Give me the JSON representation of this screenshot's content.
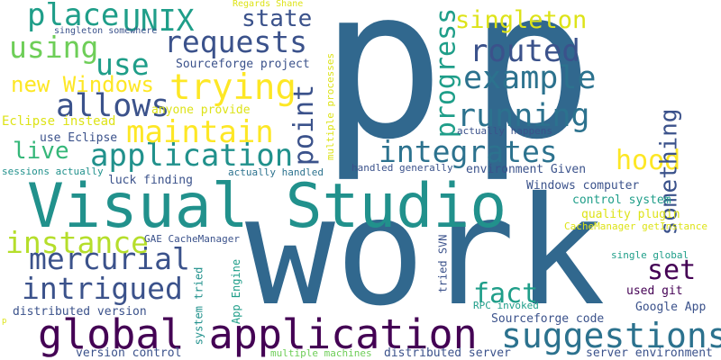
{
  "palette": {
    "purple": "#440154",
    "indigo": "#3b528b",
    "slate": "#31688e",
    "steel": "#2c728e",
    "teal": "#21918c",
    "sea": "#1f9e89",
    "green": "#35b779",
    "lime": "#6ece58",
    "chartreuse": "#b5de2b",
    "yellow": "#fde725",
    "gold": "#dde318"
  },
  "words": [
    {
      "text": "p",
      "color": "slate"
    },
    {
      "text": "p",
      "color": "slate"
    },
    {
      "text": "work",
      "color": "slate"
    },
    {
      "text": "Visual Studio",
      "color": "teal"
    },
    {
      "text": "global application",
      "color": "purple"
    },
    {
      "text": "application",
      "color": "teal"
    },
    {
      "text": "integrates",
      "color": "steel"
    },
    {
      "text": "requests",
      "color": "indigo"
    },
    {
      "text": "trying",
      "color": "yellow"
    },
    {
      "text": "example",
      "color": "steel"
    },
    {
      "text": "running",
      "color": "steel"
    },
    {
      "text": "routed",
      "color": "indigo"
    },
    {
      "text": "suggestions",
      "color": "steel"
    },
    {
      "text": "mercurial",
      "color": "indigo"
    },
    {
      "text": "intrigued",
      "color": "indigo"
    },
    {
      "text": "instance",
      "color": "chartreuse"
    },
    {
      "text": "maintain",
      "color": "yellow"
    },
    {
      "text": "allows",
      "color": "indigo"
    },
    {
      "text": "using",
      "color": "lime"
    },
    {
      "text": "place",
      "color": "sea"
    },
    {
      "text": "UNIX",
      "color": "sea"
    },
    {
      "text": "use",
      "color": "sea"
    },
    {
      "text": "state",
      "color": "indigo"
    },
    {
      "text": "singleton",
      "color": "gold"
    },
    {
      "text": "hood",
      "color": "yellow"
    },
    {
      "text": "set",
      "color": "purple"
    },
    {
      "text": "fact",
      "color": "sea"
    },
    {
      "text": "live",
      "color": "green"
    },
    {
      "text": "new Windows",
      "color": "yellow"
    },
    {
      "text": "progress",
      "color": "sea"
    },
    {
      "text": "point",
      "color": "indigo"
    },
    {
      "text": "something",
      "color": "indigo"
    },
    {
      "text": "Sourceforge project",
      "color": "indigo"
    },
    {
      "text": "anyone provide",
      "color": "gold"
    },
    {
      "text": "Eclipse instead",
      "color": "gold"
    },
    {
      "text": "use Eclipse",
      "color": "indigo"
    },
    {
      "text": "luck finding",
      "color": "indigo"
    },
    {
      "text": "Windows computer",
      "color": "indigo"
    },
    {
      "text": "control system",
      "color": "sea"
    },
    {
      "text": "quality plugin",
      "color": "gold"
    },
    {
      "text": "environment Given",
      "color": "indigo"
    },
    {
      "text": "actually happens",
      "color": "indigo"
    },
    {
      "text": "handled generally",
      "color": "indigo"
    },
    {
      "text": "actually handled",
      "color": "steel"
    },
    {
      "text": "sessions actually",
      "color": "teal"
    },
    {
      "text": "singleton somewhere",
      "color": "indigo"
    },
    {
      "text": "Regards Shane",
      "color": "gold"
    },
    {
      "text": "multiple processes",
      "color": "gold"
    },
    {
      "text": "GAE CacheManager",
      "color": "indigo"
    },
    {
      "text": "CacheManager getInstance",
      "color": "gold"
    },
    {
      "text": "single global",
      "color": "sea"
    },
    {
      "text": "used git",
      "color": "purple"
    },
    {
      "text": "Google App",
      "color": "indigo"
    },
    {
      "text": "RPC invoked",
      "color": "sea"
    },
    {
      "text": "tried SVN",
      "color": "indigo"
    },
    {
      "text": "App Engine",
      "color": "sea"
    },
    {
      "text": "system tried",
      "color": "teal"
    },
    {
      "text": "distributed version",
      "color": "indigo"
    },
    {
      "text": "version control",
      "color": "indigo"
    },
    {
      "text": "multiple machines",
      "color": "lime"
    },
    {
      "text": "distributed server",
      "color": "indigo"
    },
    {
      "text": "Sourceforge code",
      "color": "indigo"
    },
    {
      "text": "server environment",
      "color": "indigo"
    },
    {
      "text": "p",
      "color": "gold"
    }
  ]
}
